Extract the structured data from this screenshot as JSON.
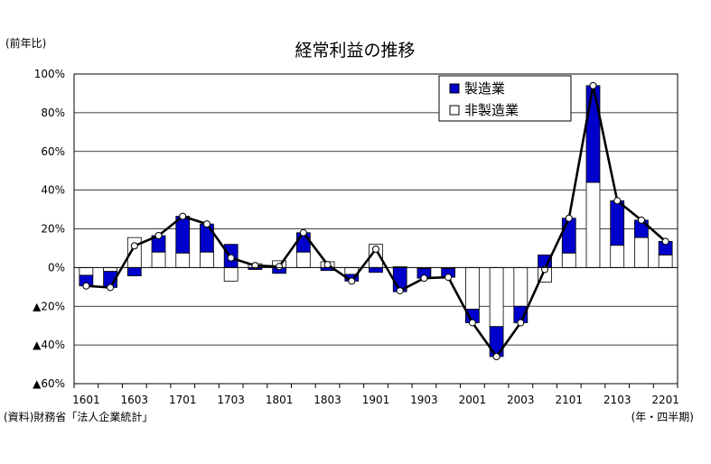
{
  "chart_data": {
    "type": "bar",
    "stacked": true,
    "title": "経常利益の推移",
    "ylabel": "(前年比)",
    "xlabel": "(年・四半期)",
    "source": "(資料)財務省「法人企業統計」",
    "ylim": [
      -60,
      100
    ],
    "ytick_values": [
      100,
      80,
      60,
      40,
      20,
      0,
      -20,
      -40,
      -60
    ],
    "ytick_labels": [
      "100%",
      "80%",
      "60%",
      "40%",
      "20%",
      "0%",
      "▲20%",
      "▲40%",
      "▲60%"
    ],
    "categories": [
      "1601",
      "1602",
      "1603",
      "1604",
      "1701",
      "1702",
      "1703",
      "1704",
      "1801",
      "1802",
      "1803",
      "1804",
      "1901",
      "1902",
      "1903",
      "1904",
      "2001",
      "2002",
      "2003",
      "2004",
      "2101",
      "2102",
      "2103",
      "2104",
      "2201"
    ],
    "xtick_labels": [
      "1601",
      "",
      "1603",
      "",
      "1701",
      "",
      "1703",
      "",
      "1801",
      "",
      "1803",
      "",
      "1901",
      "",
      "1903",
      "",
      "2001",
      "",
      "2003",
      "",
      "2101",
      "",
      "2103",
      "",
      "2201"
    ],
    "series": [
      {
        "name": "製造業",
        "color": "#0000cc",
        "values": [
          -5.5,
          -8.3,
          -4.3,
          8.5,
          19.0,
          14.5,
          12.0,
          -1.0,
          -3.0,
          10.0,
          -1.5,
          -3.5,
          -2.5,
          -12.5,
          -5.0,
          -4.5,
          -7.0,
          -15.5,
          -8.5,
          6.5,
          18.0,
          50.0,
          23.0,
          9.0,
          7.0
        ]
      },
      {
        "name": "非製造業",
        "color": "#ffffff",
        "values": [
          -4.0,
          -2.0,
          15.5,
          8.0,
          7.5,
          8.0,
          -7.0,
          2.0,
          3.5,
          8.0,
          3.0,
          -3.5,
          12.0,
          0.5,
          -0.5,
          -0.5,
          -21.5,
          -30.5,
          -20.0,
          -7.5,
          7.5,
          44.0,
          11.5,
          15.5,
          6.5
        ]
      }
    ],
    "total": [
      -9.5,
      -10.3,
      11.2,
      16.5,
      26.5,
      22.5,
      5.0,
      1.0,
      0.5,
      18.0,
      1.5,
      -7.0,
      9.5,
      -12.0,
      -5.5,
      -5.0,
      -28.5,
      -46.0,
      -28.5,
      -1.0,
      25.5,
      94.0,
      34.5,
      24.5,
      13.5
    ],
    "grid": true,
    "legend": "top-right"
  }
}
